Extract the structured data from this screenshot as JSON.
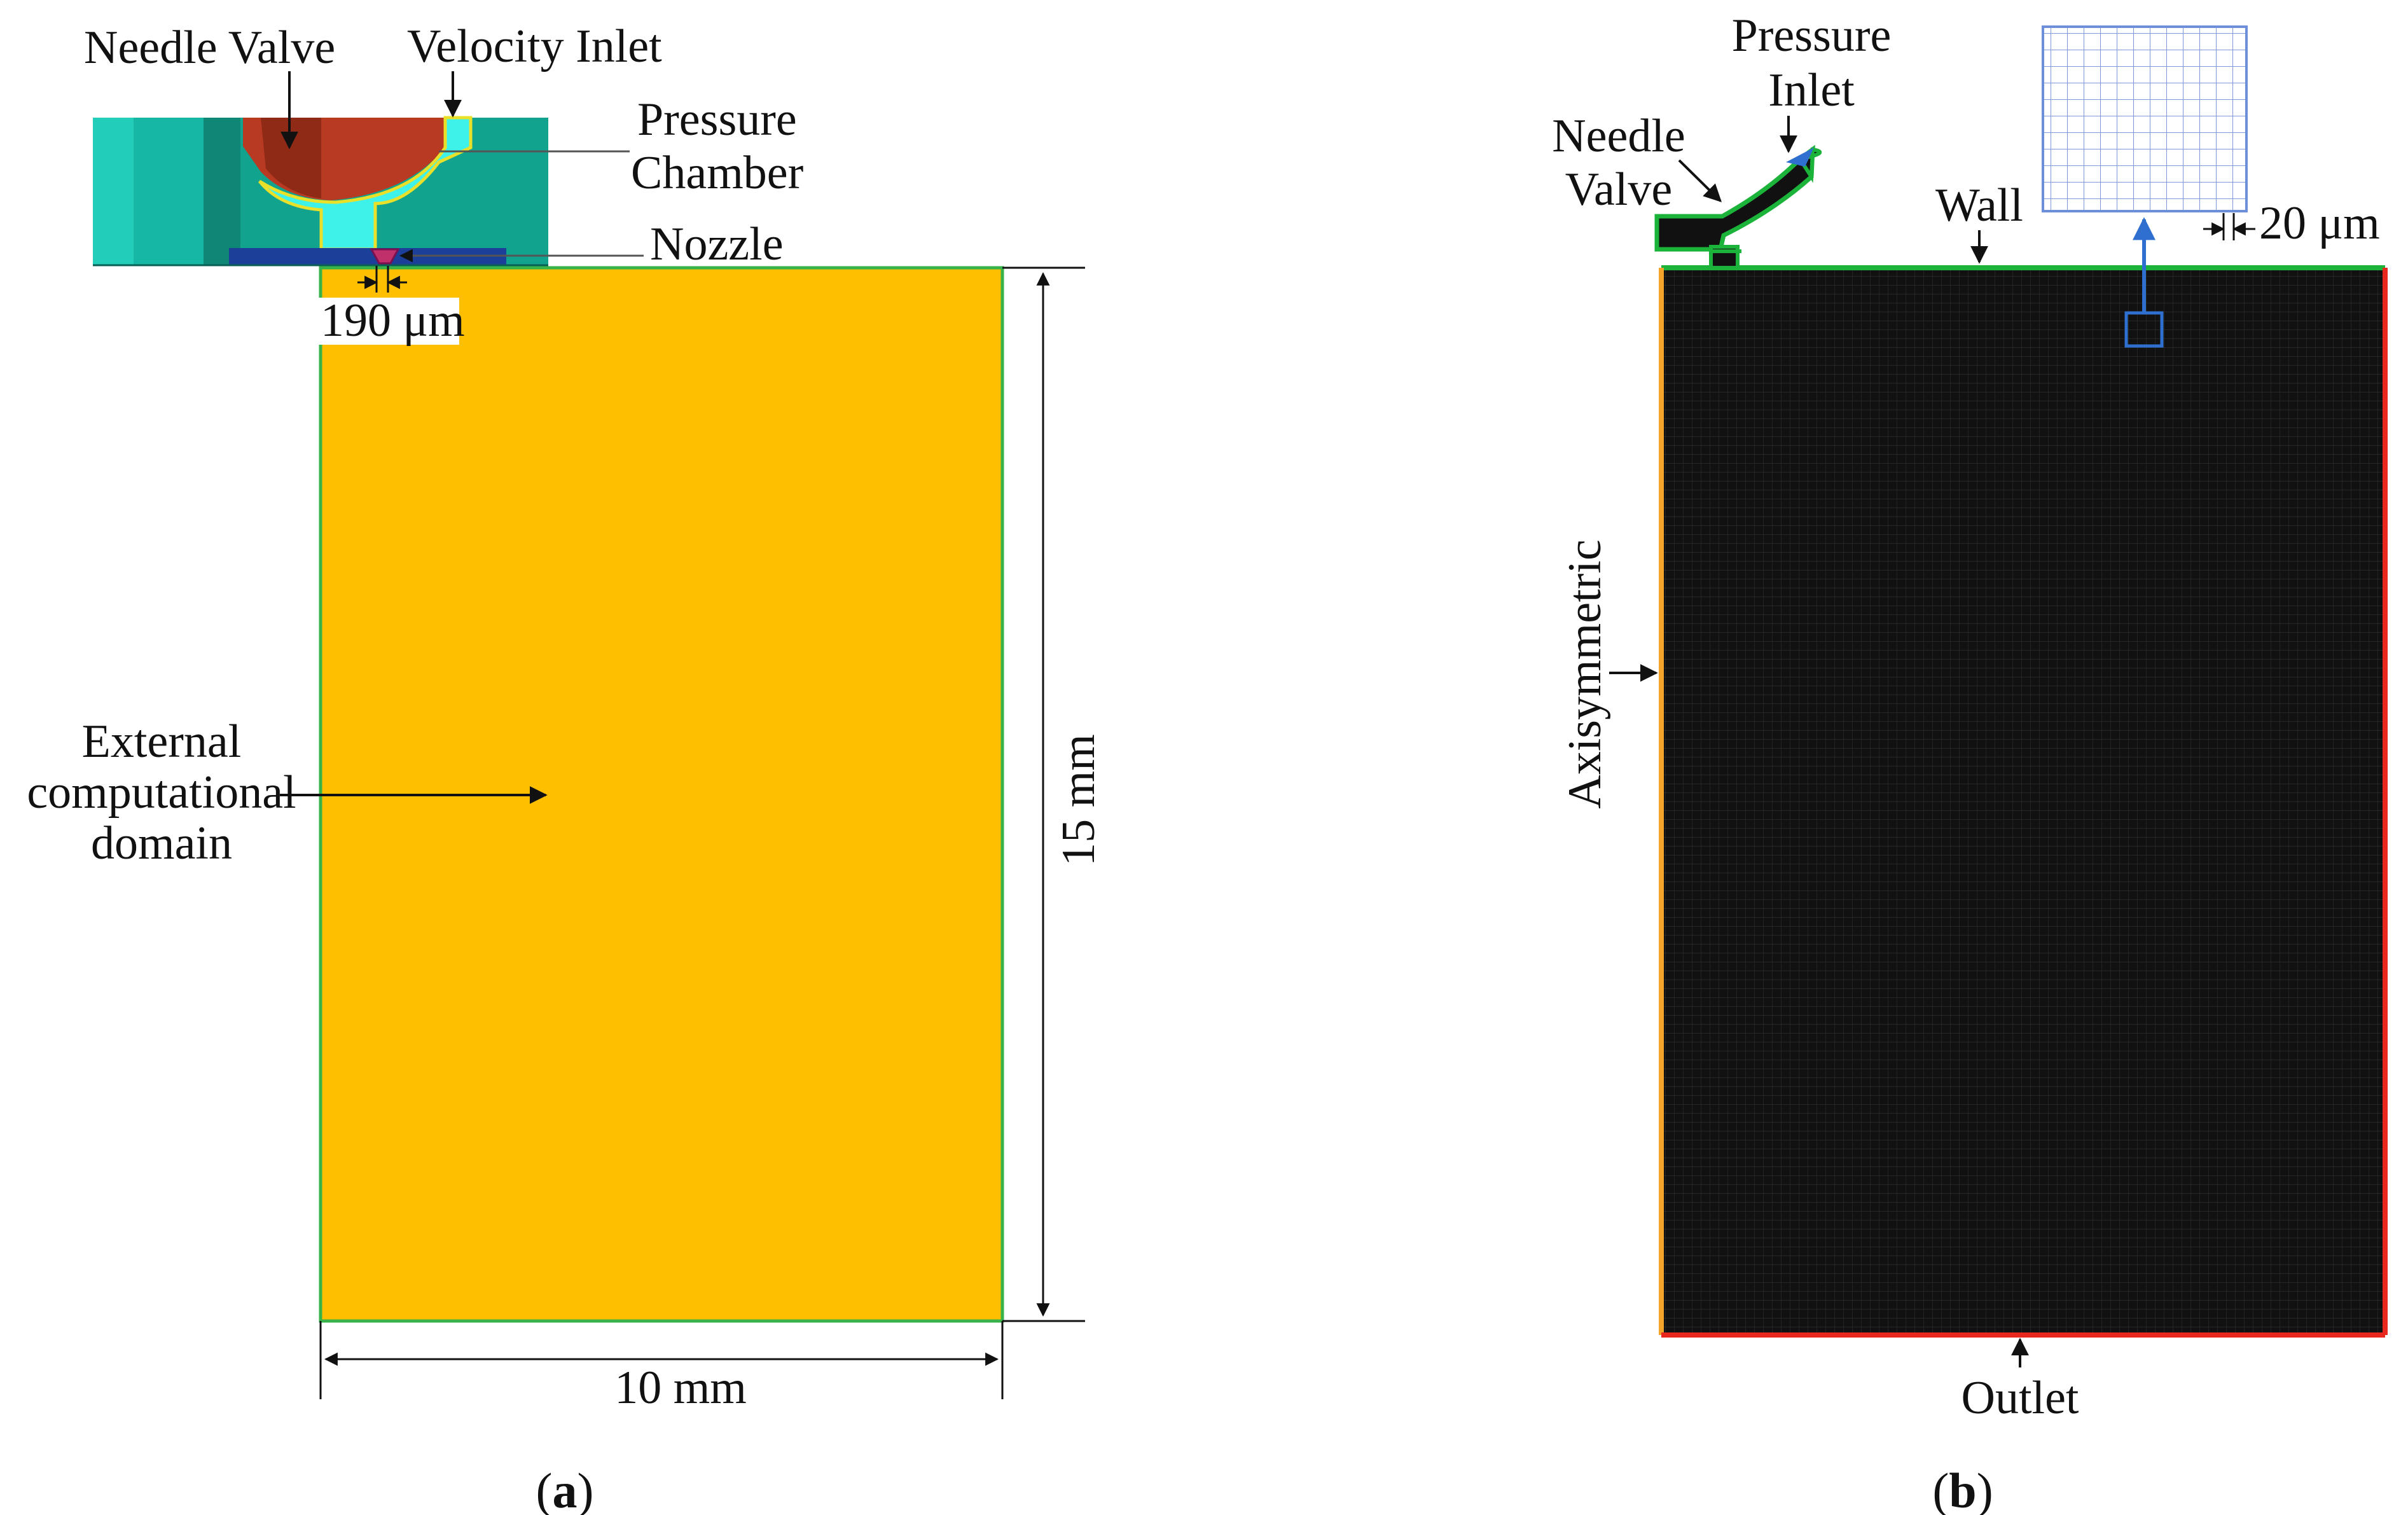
{
  "panel_a": {
    "caption_letter": "a",
    "labels": {
      "needle_valve": "Needle Valve",
      "velocity_inlet": "Velocity Inlet",
      "pressure_line1": "Pressure",
      "pressure_line2": "Chamber",
      "nozzle": "Nozzle",
      "nozzle_dim": "190 μm",
      "ext_line1": "External",
      "ext_line2": "computational",
      "ext_line3": "domain",
      "height_dim": "15 mm",
      "width_dim": "10 mm"
    },
    "colors": {
      "domain_fill": "#FDBF00",
      "domain_border": "#37B34A",
      "body_teal": "#11A38E",
      "body_cyan": "#22D3C2",
      "needle_red": "#B83A22",
      "chamber_cyan": "#3EF2EA",
      "chamber_outline": "#E9E02A",
      "nozzle_blue": "#1C3F9A"
    }
  },
  "panel_b": {
    "caption_letter": "b",
    "labels": {
      "pressure_line1": "Pressure",
      "pressure_line2": "Inlet",
      "needle_line1": "Needle",
      "needle_line2": "Valve",
      "wall": "Wall",
      "cell_size": "20 μm",
      "axisymmetric": "Axisymmetric",
      "outlet": "Outlet"
    },
    "colors": {
      "mesh_fill": "#111111",
      "wall_green": "#1CB33A",
      "axis_orange": "#F2A52A",
      "outlet_red": "#E8281E",
      "zoom_blue": "#2E6FD0",
      "inset_grid": "#6D8FD9"
    }
  }
}
